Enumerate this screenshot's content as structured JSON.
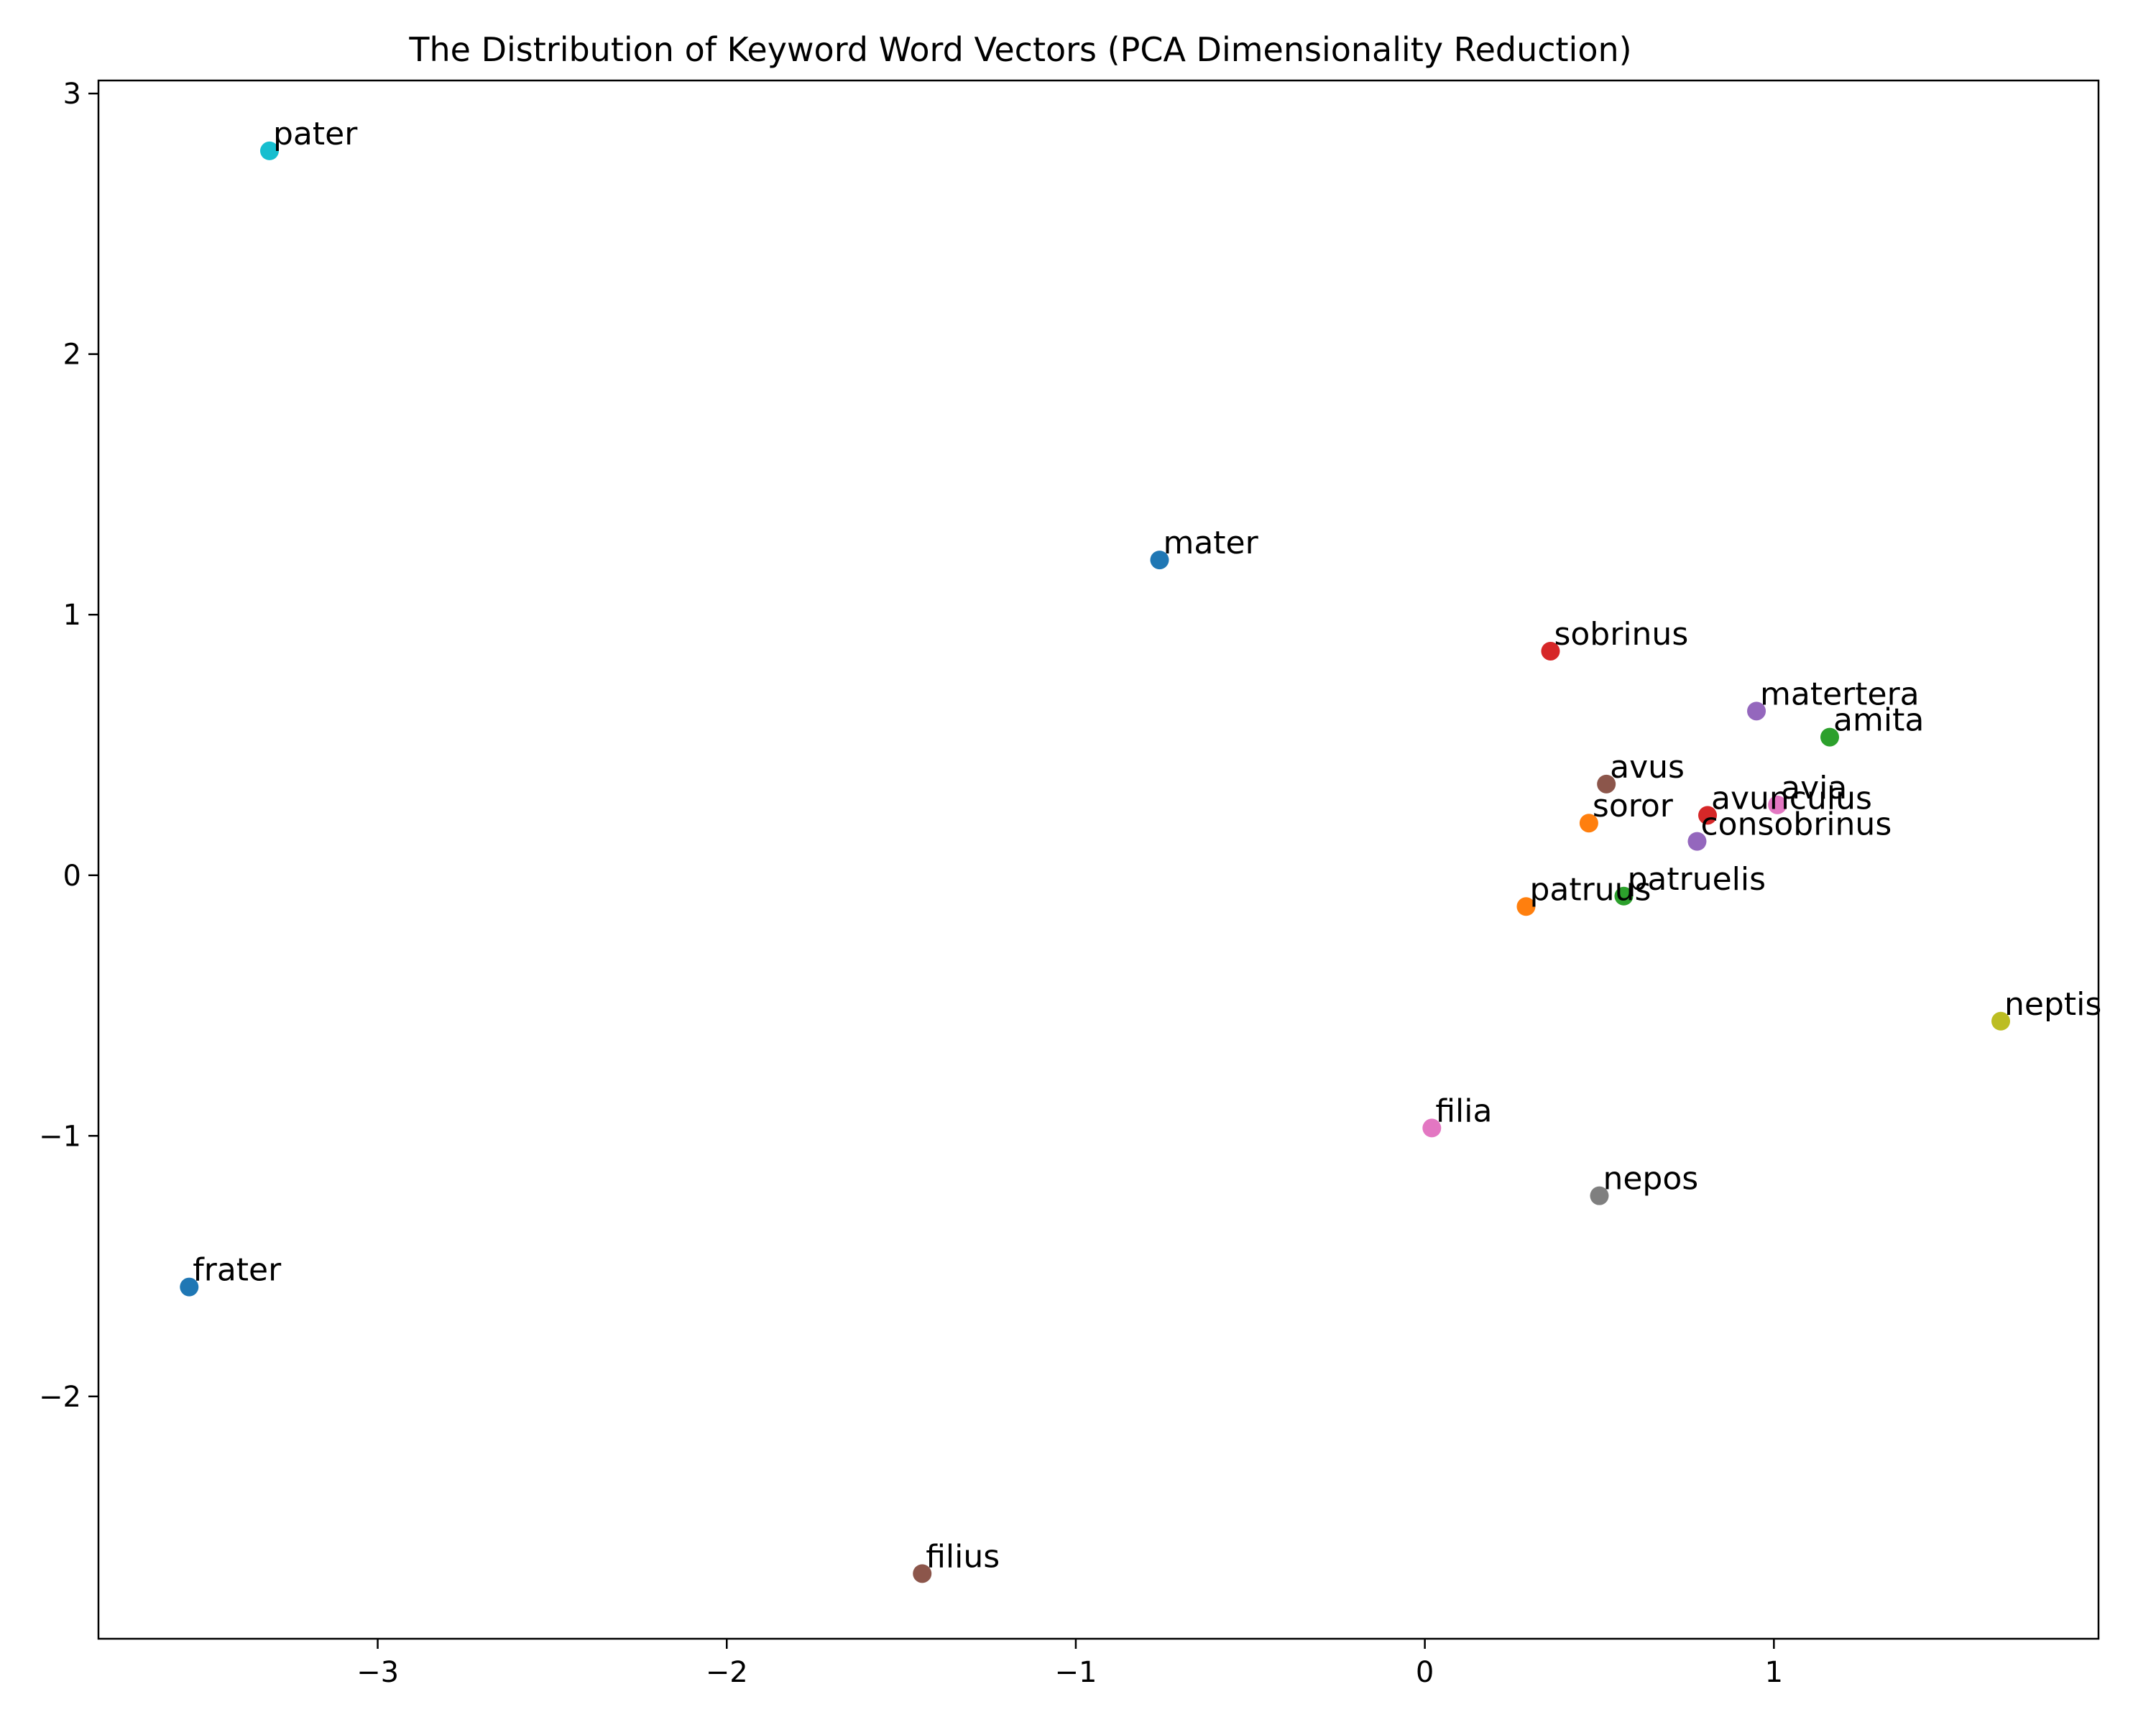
{
  "chart_data": {
    "type": "scatter",
    "title": "The Distribution of Keyword Word Vectors (PCA Dimensionality Reduction)",
    "xlabel": "",
    "ylabel": "",
    "xlim": [
      -3.8,
      1.93
    ],
    "ylim": [
      -2.93,
      3.05
    ],
    "grid": false,
    "x_ticks": [
      -3,
      -2,
      -1,
      0,
      1
    ],
    "x_tick_labels": [
      "−3",
      "−2",
      "−1",
      "0",
      "1"
    ],
    "y_ticks": [
      -2,
      -1,
      0,
      1,
      2,
      3
    ],
    "y_tick_labels": [
      "−2",
      "−1",
      "0",
      "1",
      "2",
      "3"
    ],
    "points": [
      {
        "label": "pater",
        "x": -3.31,
        "y": 2.78,
        "color": "#17becf"
      },
      {
        "label": "mater",
        "x": -0.76,
        "y": 1.21,
        "color": "#1f77b4"
      },
      {
        "label": "sobrinus",
        "x": 0.36,
        "y": 0.86,
        "color": "#d62728"
      },
      {
        "label": "matertera",
        "x": 0.95,
        "y": 0.63,
        "color": "#9467bd"
      },
      {
        "label": "amita",
        "x": 1.16,
        "y": 0.53,
        "color": "#2ca02c"
      },
      {
        "label": "avus",
        "x": 0.52,
        "y": 0.35,
        "color": "#8c564b"
      },
      {
        "label": "avia",
        "x": 1.01,
        "y": 0.27,
        "color": "#e377c2"
      },
      {
        "label": "avunculus",
        "x": 0.81,
        "y": 0.23,
        "color": "#d62728"
      },
      {
        "label": "soror",
        "x": 0.47,
        "y": 0.2,
        "color": "#ff7f0e"
      },
      {
        "label": "consobrinus",
        "x": 0.78,
        "y": 0.13,
        "color": "#9467bd"
      },
      {
        "label": "patruelis",
        "x": 0.57,
        "y": -0.08,
        "color": "#2ca02c"
      },
      {
        "label": "patruus",
        "x": 0.29,
        "y": -0.12,
        "color": "#ff7f0e"
      },
      {
        "label": "neptis",
        "x": 1.65,
        "y": -0.56,
        "color": "#bcbd22"
      },
      {
        "label": "filia",
        "x": 0.02,
        "y": -0.97,
        "color": "#e377c2"
      },
      {
        "label": "nepos",
        "x": 0.5,
        "y": -1.23,
        "color": "#7f7f7f"
      },
      {
        "label": "frater",
        "x": -3.54,
        "y": -1.58,
        "color": "#1f77b4"
      },
      {
        "label": "filius",
        "x": -1.44,
        "y": -2.68,
        "color": "#8c564b"
      }
    ]
  }
}
